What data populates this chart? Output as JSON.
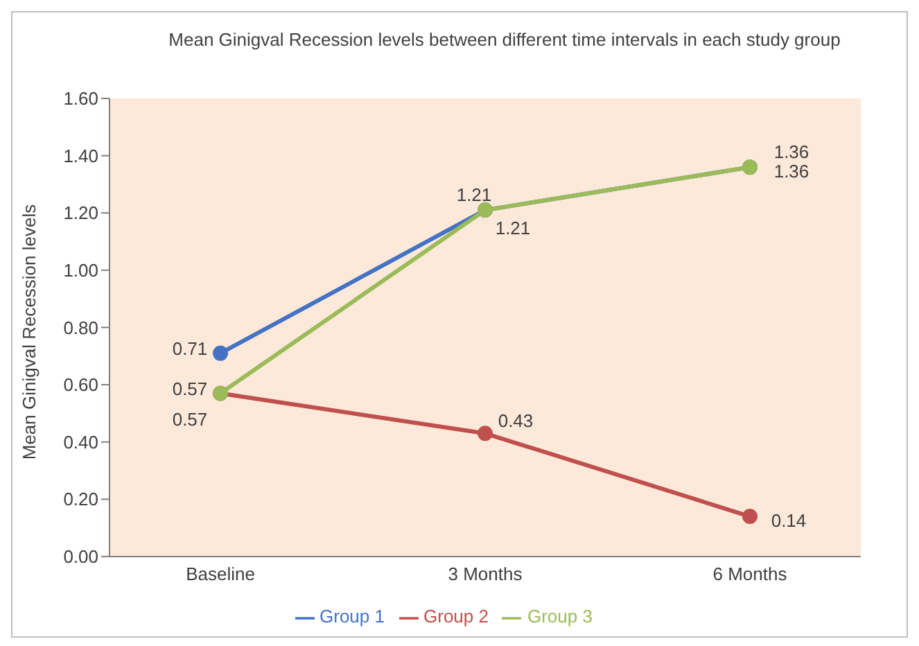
{
  "chart_data": {
    "type": "line",
    "title": "Mean Ginigval Recession levels between different time intervals in each study group",
    "ylabel": "Mean Ginigval Recession levels",
    "categories": [
      "Baseline",
      "3 Months",
      "6 Months"
    ],
    "series": [
      {
        "name": "Group 1",
        "color": "#4472c4",
        "values": [
          0.71,
          1.21,
          1.36
        ]
      },
      {
        "name": "Group 2",
        "color": "#c0504d",
        "values": [
          0.57,
          0.43,
          0.14
        ]
      },
      {
        "name": "Group 3",
        "color": "#9bbb59",
        "values": [
          0.57,
          1.21,
          1.36
        ]
      }
    ],
    "ylim": [
      0,
      1.6
    ],
    "yticks": [
      {
        "value": 0,
        "label": "0.00"
      },
      {
        "value": 0.2,
        "label": "0.20"
      },
      {
        "value": 0.4,
        "label": "0.40"
      },
      {
        "value": 0.6,
        "label": "0.60"
      },
      {
        "value": 0.8,
        "label": "0.80"
      },
      {
        "value": 1,
        "label": "1.00"
      },
      {
        "value": 1.2,
        "label": "1.20"
      },
      {
        "value": 1.4,
        "label": "1.40"
      },
      {
        "value": 1.6,
        "label": "1.60"
      }
    ],
    "grid": false,
    "legend": "bottom",
    "marker": "circle",
    "line_style": "solid",
    "data_labels": true
  }
}
